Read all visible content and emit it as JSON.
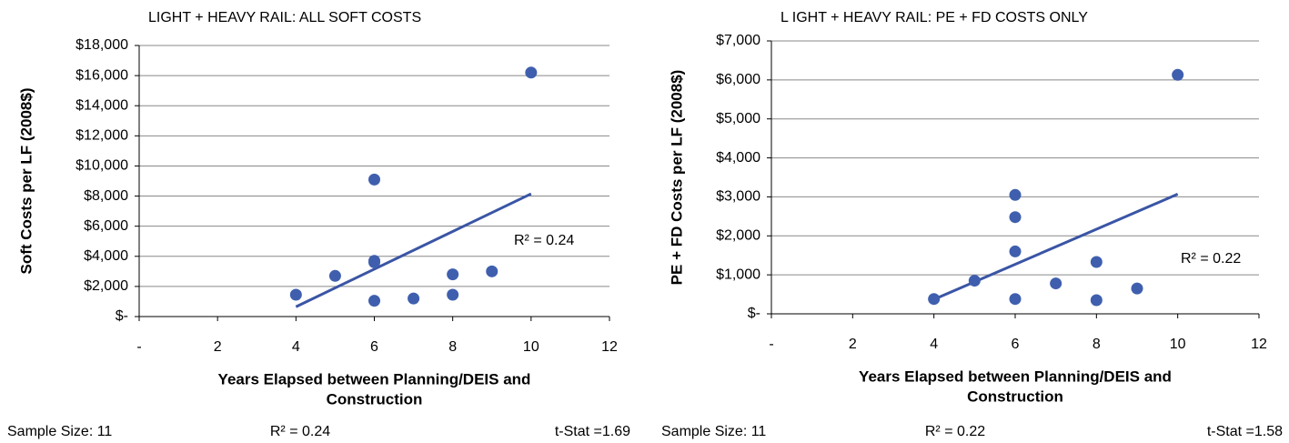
{
  "chart_data": [
    {
      "type": "scatter",
      "title": "LIGHT + HEAVY RAIL: ALL SOFT COSTS",
      "x_label": [
        "Years Elapsed between Planning/DEIS and",
        "Construction"
      ],
      "y_label": "Soft Costs per LF (2008$)",
      "annotation": "R² = 0.24",
      "footnotes": [
        "Sample Size: 11",
        "R² = 0.24",
        "t-Stat =1.69"
      ],
      "color": "#3f5fae",
      "grid": true,
      "x": [
        4,
        5,
        6,
        6,
        6,
        6,
        7,
        8,
        8,
        9,
        10
      ],
      "values": [
        1450,
        2700,
        9100,
        3700,
        3600,
        1050,
        1200,
        2800,
        1450,
        3000,
        16200
      ],
      "trendline": {
        "x": [
          4,
          10
        ],
        "y": [
          650,
          8150
        ]
      },
      "xlim": [
        0,
        12
      ],
      "xticks": [
        {
          "value": 0,
          "label": "-"
        },
        2,
        4,
        6,
        8,
        10,
        12
      ],
      "ylim": [
        0,
        18000
      ],
      "yticks": [
        {
          "value": 0,
          "label": "$-"
        },
        {
          "value": 2000,
          "label": "$2,000"
        },
        {
          "value": 4000,
          "label": "$4,000"
        },
        {
          "value": 6000,
          "label": "$6,000"
        },
        {
          "value": 8000,
          "label": "$8,000"
        },
        {
          "value": 10000,
          "label": "$10,000"
        },
        {
          "value": 12000,
          "label": "$12,000"
        },
        {
          "value": 14000,
          "label": "$14,000"
        },
        {
          "value": 16000,
          "label": "$16,000"
        },
        {
          "value": 18000,
          "label": "$18,000"
        }
      ]
    },
    {
      "type": "scatter",
      "title": "L IGHT + HEAVY RAIL: PE + FD COSTS ONLY",
      "x_label": [
        "Years Elapsed between Planning/DEIS and",
        "Construction"
      ],
      "y_label": "PE + FD Costs per LF (2008$)",
      "annotation": "R² = 0.22",
      "footnotes": [
        "Sample Size: 11",
        "R² = 0.22",
        "t-Stat =1.58"
      ],
      "color": "#3f5fae",
      "grid": true,
      "x": [
        4,
        5,
        6,
        6,
        6,
        6,
        7,
        8,
        8,
        9,
        10
      ],
      "values": [
        380,
        850,
        3050,
        2480,
        1600,
        380,
        780,
        1330,
        350,
        650,
        6130
      ],
      "trendline": {
        "x": [
          4,
          10
        ],
        "y": [
          370,
          3070
        ]
      },
      "xlim": [
        0,
        12
      ],
      "xticks": [
        {
          "value": 0,
          "label": "-"
        },
        2,
        4,
        6,
        8,
        10,
        12
      ],
      "ylim": [
        0,
        7000
      ],
      "yticks": [
        {
          "value": 0,
          "label": "$-"
        },
        {
          "value": 1000,
          "label": "$1,000"
        },
        {
          "value": 2000,
          "label": "$2,000"
        },
        {
          "value": 3000,
          "label": "$3,000"
        },
        {
          "value": 4000,
          "label": "$4,000"
        },
        {
          "value": 5000,
          "label": "$5,000"
        },
        {
          "value": 6000,
          "label": "$6,000"
        },
        {
          "value": 7000,
          "label": "$7,000"
        }
      ]
    }
  ]
}
